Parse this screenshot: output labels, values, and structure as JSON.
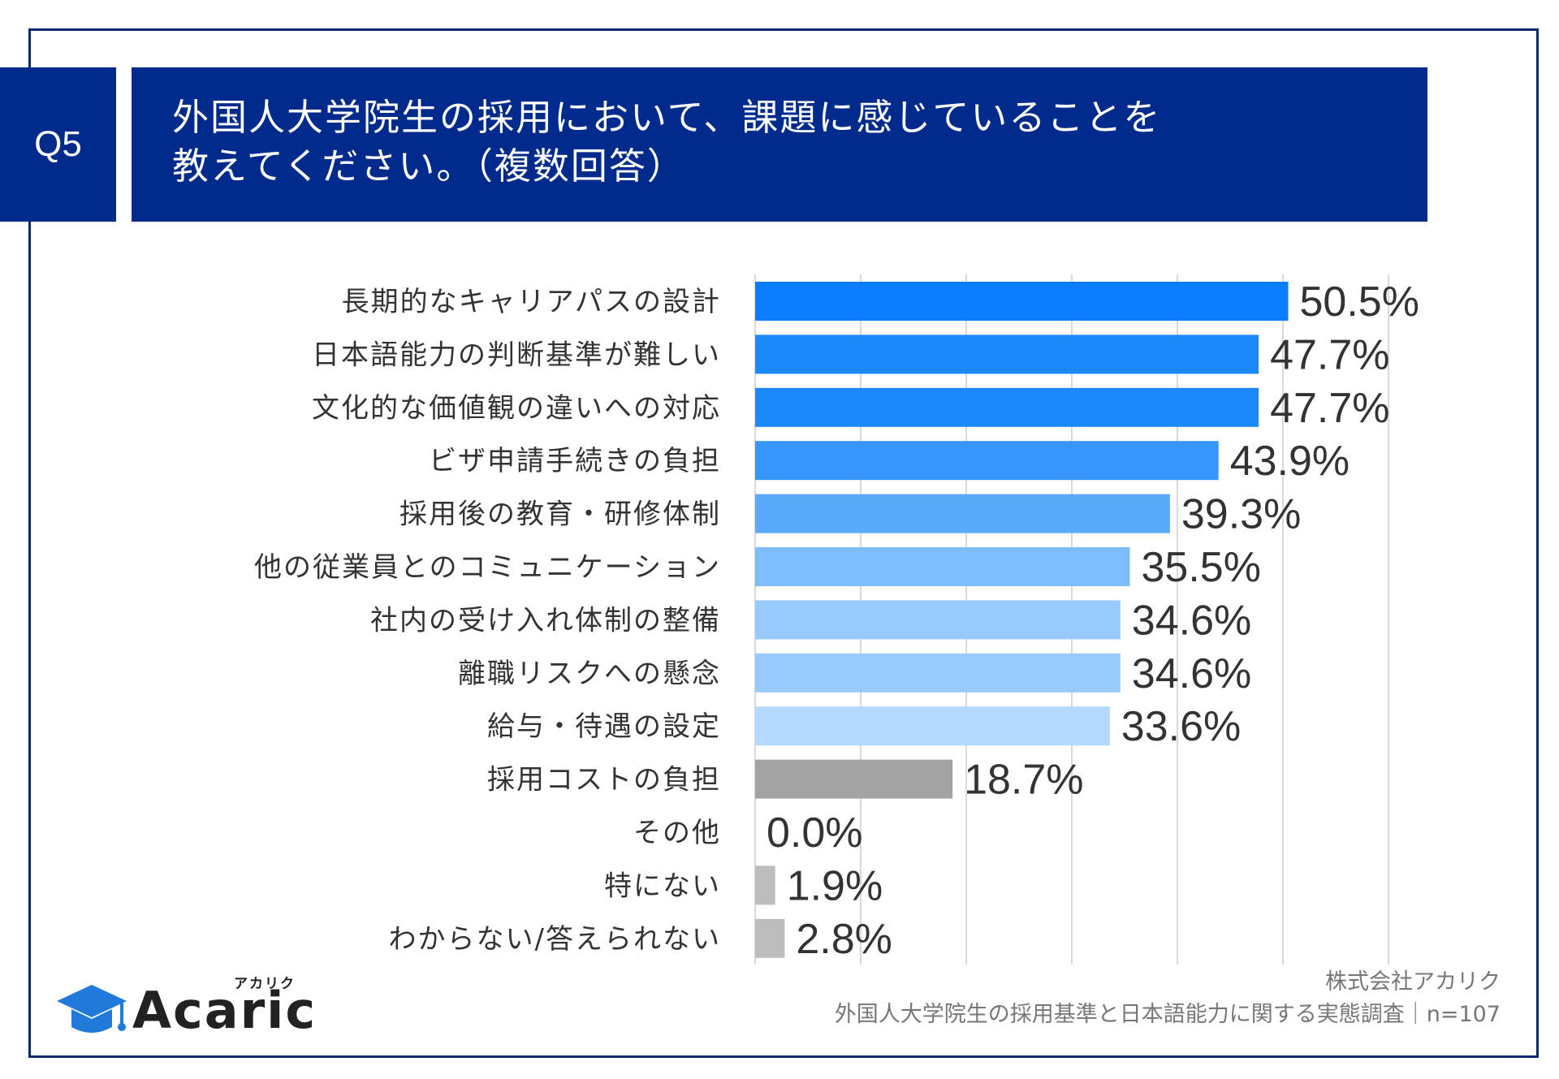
{
  "header": {
    "question_badge": "Q5",
    "title_lines": [
      "外国人大学院生の採用において、課題に感じていることを",
      "教えてください。（複数回答）"
    ]
  },
  "chart_data": {
    "type": "bar",
    "orientation": "horizontal",
    "categories": [
      "長期的なキャリアパスの設計",
      "日本語能力の判断基準が難しい",
      "文化的な価値観の違いへの対応",
      "ビザ申請手続きの負担",
      "採用後の教育・研修体制",
      "他の従業員とのコミュニケーション",
      "社内の受け入れ体制の整備",
      "離職リスクへの懸念",
      "給与・待遇の設定",
      "採用コストの負担",
      "その他",
      "特にない",
      "わからない/答えられない"
    ],
    "values": [
      50.5,
      47.7,
      47.7,
      43.9,
      39.3,
      35.5,
      34.6,
      34.6,
      33.6,
      18.7,
      0.0,
      1.9,
      2.8
    ],
    "value_labels": [
      "50.5%",
      "47.7%",
      "47.7%",
      "43.9%",
      "39.3%",
      "35.5%",
      "34.6%",
      "34.6%",
      "33.6%",
      "18.7%",
      "0.0%",
      "1.9%",
      "2.8%"
    ],
    "colors": [
      "#0a7cff",
      "#1c89fb",
      "#1c89fb",
      "#3696fb",
      "#5aaafc",
      "#7dbcfd",
      "#99cafd",
      "#99cafd",
      "#b5d8fe",
      "#a3a3a3",
      "#bdbdbd",
      "#bdbdbd",
      "#bdbdbd"
    ],
    "xlim": [
      0,
      60
    ],
    "grid": true
  },
  "footer": {
    "logo_text": "Acaric",
    "logo_kana": "アカリク",
    "source_lines": [
      "株式会社アカリク",
      "外国人大学院生の採用基準と日本語能力に関する実態調査｜n=107"
    ]
  }
}
